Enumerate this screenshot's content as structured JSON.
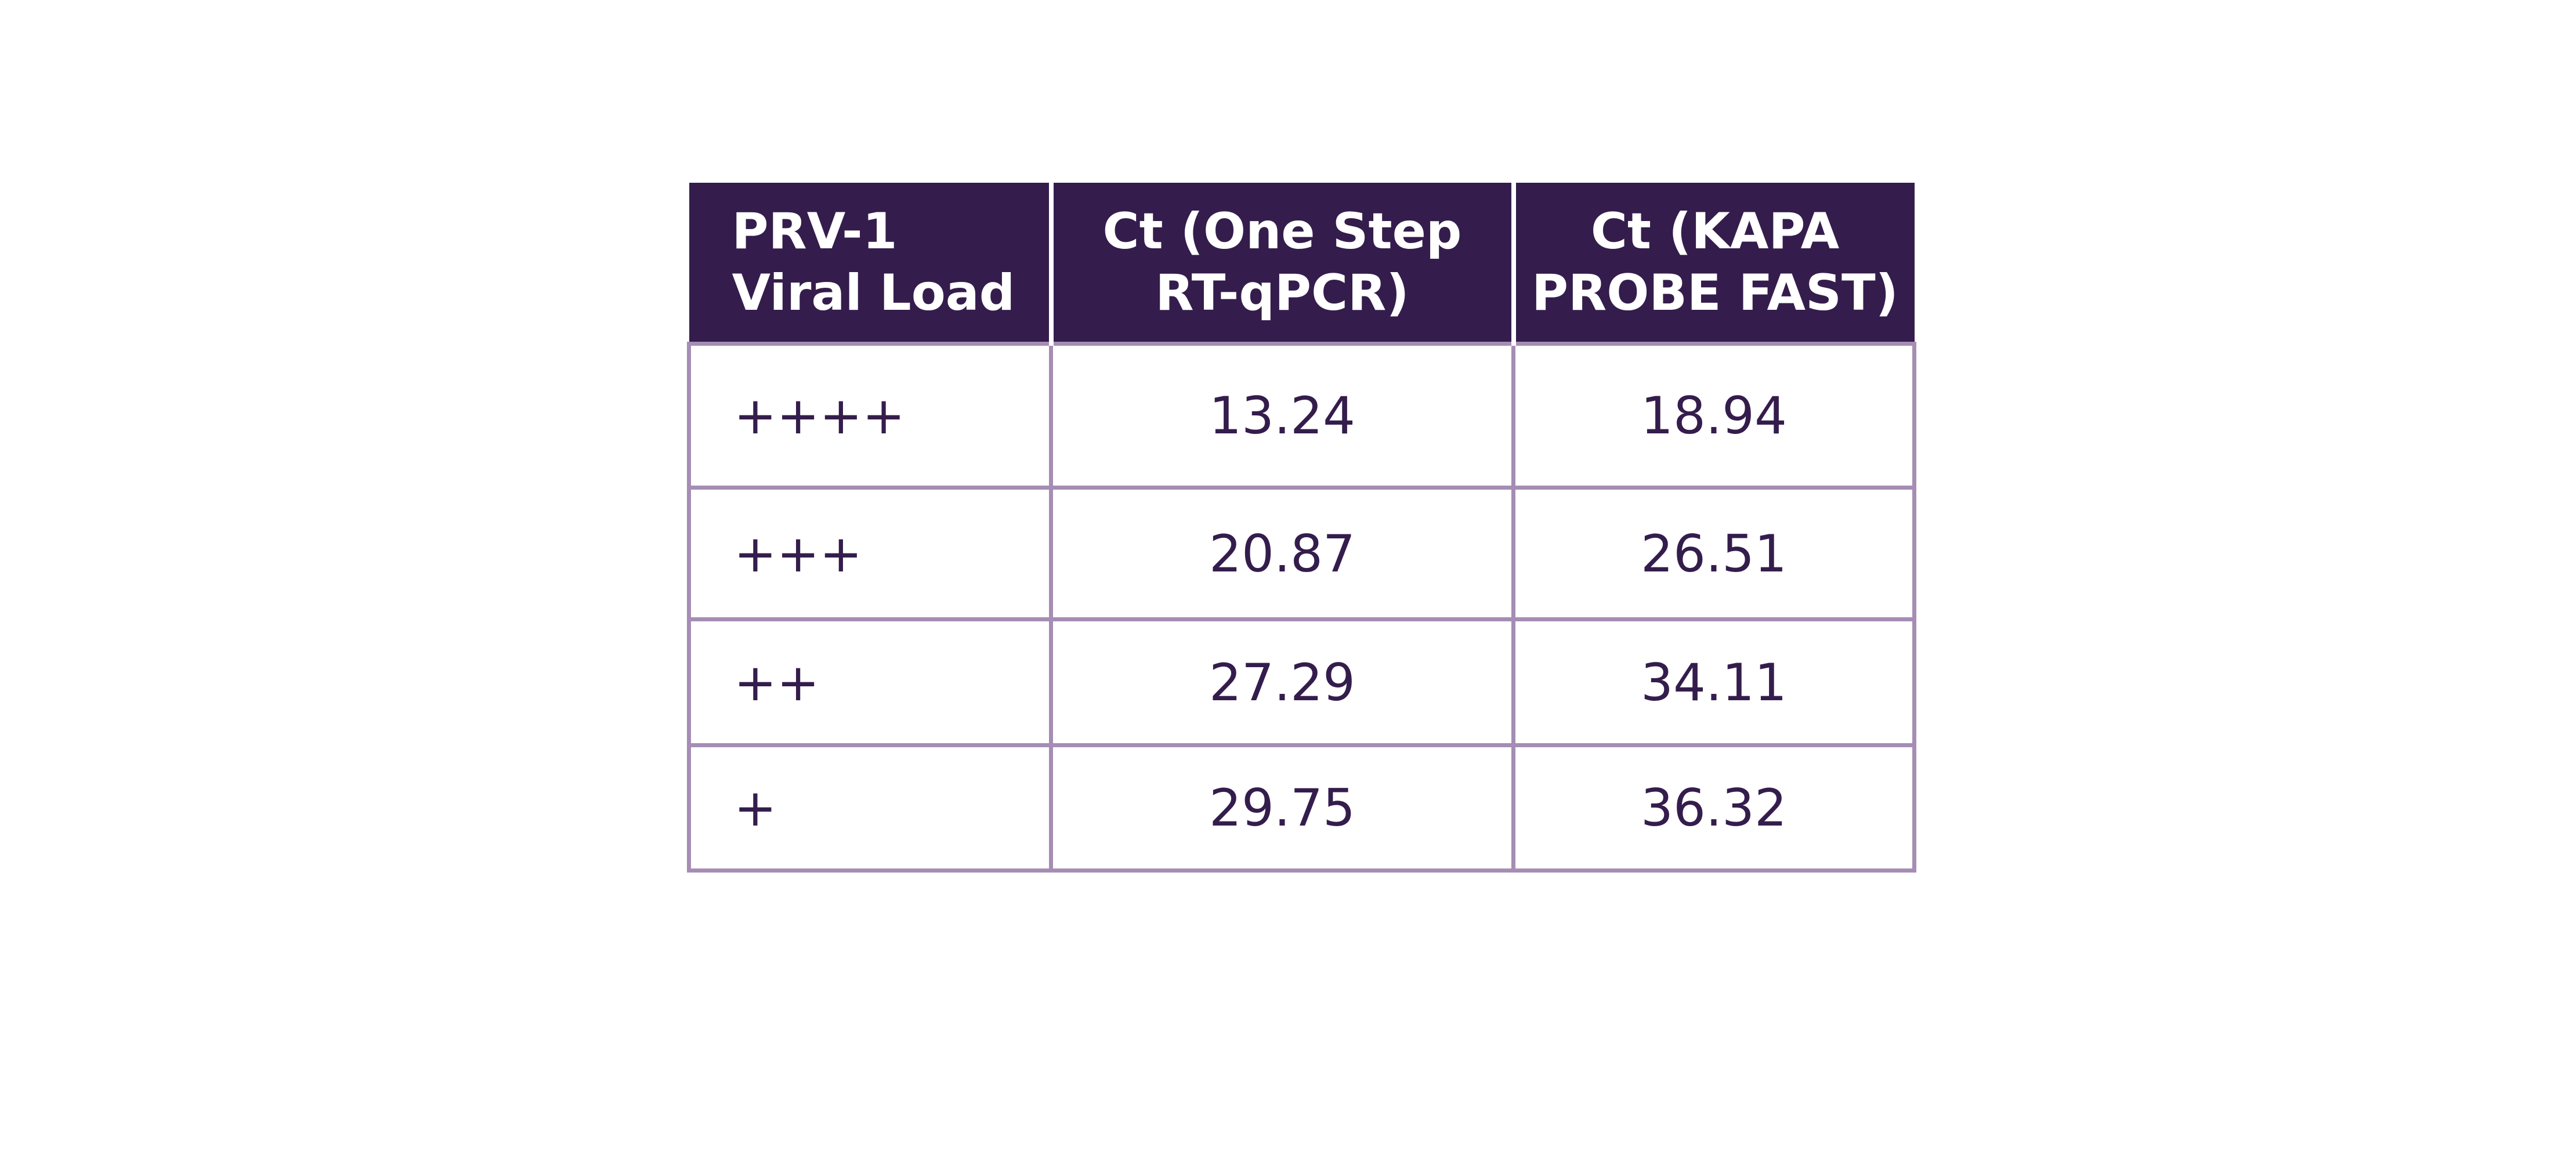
{
  "chart_data": {
    "type": "table",
    "columns": [
      [
        "PRV-1",
        "Viral Load"
      ],
      [
        "Ct (One Step",
        "RT-qPCR)"
      ],
      [
        "Ct (KAPA",
        "PROBE FAST)"
      ]
    ],
    "rows": [
      [
        "++++",
        "13.24",
        "18.94"
      ],
      [
        "+++",
        "20.87",
        "26.51"
      ],
      [
        "++",
        "27.29",
        "34.11"
      ],
      [
        "+",
        "29.75",
        "36.32"
      ]
    ]
  },
  "colors": {
    "header_background": "#341d4c",
    "header_text": "#ffffff",
    "cell_text": "#341d4c",
    "grid_lines": "#a58db4",
    "page_background": "#ffffff"
  }
}
